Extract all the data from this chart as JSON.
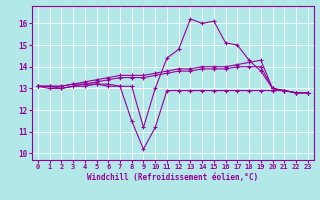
{
  "xlabel": "Windchill (Refroidissement éolien,°C)",
  "bg_color": "#b2e8e8",
  "grid_color": "#ffffff",
  "line_color": "#990099",
  "marker": "+",
  "xlim": [
    -0.5,
    23.5
  ],
  "ylim": [
    9.7,
    16.8
  ],
  "yticks": [
    10,
    11,
    12,
    13,
    14,
    15,
    16
  ],
  "xticks": [
    0,
    1,
    2,
    3,
    4,
    5,
    6,
    7,
    8,
    9,
    10,
    11,
    12,
    13,
    14,
    15,
    16,
    17,
    18,
    19,
    20,
    21,
    22,
    23
  ],
  "lines": [
    [
      13.1,
      13.1,
      13.0,
      13.1,
      13.2,
      13.2,
      13.1,
      13.1,
      11.5,
      10.2,
      11.2,
      12.9,
      12.9,
      12.9,
      12.9,
      12.9,
      12.9,
      12.9,
      12.9,
      12.9,
      12.9,
      12.9,
      12.8,
      12.8
    ],
    [
      13.1,
      13.0,
      13.0,
      13.1,
      13.1,
      13.2,
      13.2,
      13.1,
      13.1,
      11.2,
      13.0,
      14.4,
      14.8,
      16.2,
      16.0,
      16.1,
      15.1,
      15.0,
      14.3,
      13.8,
      13.0,
      12.9,
      12.8,
      12.8
    ],
    [
      13.1,
      13.1,
      13.1,
      13.2,
      13.3,
      13.4,
      13.5,
      13.6,
      13.6,
      13.6,
      13.7,
      13.8,
      13.9,
      13.9,
      14.0,
      14.0,
      14.0,
      14.1,
      14.2,
      14.3,
      13.0,
      12.9,
      12.8,
      12.8
    ],
    [
      13.1,
      13.1,
      13.1,
      13.2,
      13.2,
      13.3,
      13.4,
      13.5,
      13.5,
      13.5,
      13.6,
      13.7,
      13.8,
      13.8,
      13.9,
      13.9,
      13.9,
      14.0,
      14.0,
      14.0,
      13.0,
      12.9,
      12.8,
      12.8
    ]
  ]
}
